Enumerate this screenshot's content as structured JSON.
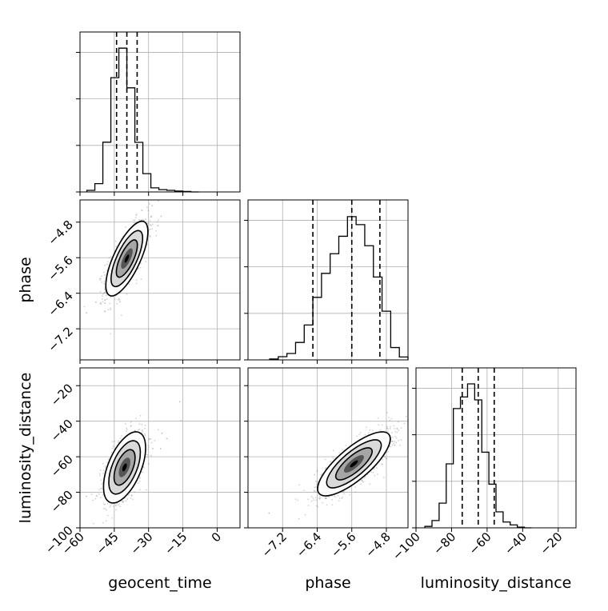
{
  "chart_data": [
    {
      "type": "histogram",
      "panel": "geocent_time",
      "xlim": [
        -60,
        10
      ],
      "ylim": [
        0,
        1
      ],
      "bin_edges": [
        -57,
        -53.5,
        -50,
        -46.5,
        -43,
        -39.5,
        -36,
        -32.5,
        -29,
        -25.5,
        -22,
        -18.5,
        -15,
        -11.5,
        -8
      ],
      "values": [
        0.011,
        0.057,
        0.342,
        0.786,
        0.989,
        0.716,
        0.341,
        0.126,
        0.028,
        0.016,
        0.011,
        0.006,
        0.003,
        0
      ],
      "quantiles": [
        -44,
        -39.5,
        -35
      ],
      "grid": true
    },
    {
      "type": "histogram",
      "panel": "phase",
      "xlim": [
        -8,
        -4.3
      ],
      "ylim": [
        0,
        1
      ],
      "bin_edges": [
        -7.5,
        -7.3,
        -7.1,
        -6.9,
        -6.7,
        -6.5,
        -6.3,
        -6.1,
        -5.9,
        -5.7,
        -5.5,
        -5.3,
        -5.1,
        -4.9,
        -4.7,
        -4.5,
        -4.3
      ],
      "values": [
        0.006,
        0.022,
        0.044,
        0.12,
        0.24,
        0.43,
        0.595,
        0.73,
        0.85,
        0.985,
        0.93,
        0.785,
        0.57,
        0.335,
        0.085,
        0.02
      ],
      "quantiles": [
        -6.5,
        -5.6,
        -4.95
      ],
      "grid": true
    },
    {
      "type": "histogram",
      "panel": "luminosity_distance",
      "xlim": [
        -100,
        -10
      ],
      "ylim": [
        0,
        1
      ],
      "bin_edges": [
        -95,
        -91,
        -87,
        -83,
        -79,
        -75,
        -71,
        -67,
        -63,
        -59,
        -55,
        -51,
        -47,
        -43,
        -39,
        -35
      ],
      "values": [
        0.01,
        0.05,
        0.17,
        0.44,
        0.82,
        0.9,
        0.99,
        0.88,
        0.52,
        0.3,
        0.11,
        0.04,
        0.02,
        0.005,
        0
      ],
      "quantiles": [
        -74,
        -65,
        -56
      ],
      "grid": true
    },
    {
      "type": "density",
      "panel": "geocent_time-vs-phase",
      "x": "geocent_time",
      "y": "phase",
      "xlim": [
        -60,
        10
      ],
      "ylim": [
        -7.9,
        -4.3
      ],
      "center": [
        -39.5,
        -5.62
      ],
      "sd": [
        4.6,
        0.42
      ],
      "correlation": 0.72,
      "grid": true
    },
    {
      "type": "density",
      "panel": "geocent_time-vs-luminosity_distance",
      "x": "geocent_time",
      "y": "luminosity_distance",
      "xlim": [
        -60,
        10
      ],
      "ylim": [
        -100,
        -10
      ],
      "center": [
        -40.5,
        -66
      ],
      "sd": [
        4.6,
        10
      ],
      "correlation": 0.55,
      "grid": true
    },
    {
      "type": "density",
      "panel": "phase-vs-luminosity_distance",
      "x": "phase",
      "y": "luminosity_distance",
      "xlim": [
        -8,
        -4.3
      ],
      "ylim": [
        -100,
        -10
      ],
      "center": [
        -5.55,
        -64
      ],
      "sd": [
        0.42,
        9
      ],
      "correlation": 0.78,
      "grid": true
    }
  ],
  "axes": {
    "geocent_time": {
      "label": "geocent_time",
      "ticks": [
        -60,
        -45,
        -30,
        -15,
        0
      ],
      "tick_labels": [
        "−60",
        "−45",
        "−30",
        "−15",
        "0"
      ]
    },
    "phase_x": {
      "label": "phase",
      "ticks": [
        -7.2,
        -6.4,
        -5.6,
        -4.8
      ],
      "tick_labels": [
        "−7.2",
        "−6.4",
        "−5.6",
        "−4.8"
      ]
    },
    "phase_y": {
      "label": "phase",
      "ticks": [
        -7.2,
        -6.4,
        -5.6,
        -4.8
      ],
      "tick_labels": [
        "−7.2",
        "−6.4",
        "−5.6",
        "−4.8"
      ]
    },
    "luminosity_distance_x": {
      "label": "luminosity_distance",
      "ticks": [
        -100,
        -80,
        -60,
        -40,
        -20
      ],
      "tick_labels": [
        "−100",
        "−80",
        "−60",
        "−40",
        "−20"
      ]
    },
    "luminosity_distance_y": {
      "label": "luminosity_distance",
      "ticks": [
        -100,
        -80,
        -60,
        -40,
        -20
      ],
      "tick_labels": [
        "−100",
        "−80",
        "−60",
        "−40",
        "−20"
      ]
    }
  },
  "colors": {
    "line": "#000000",
    "grid": "#b0b0b0",
    "scatter": "#7f7f7f"
  }
}
